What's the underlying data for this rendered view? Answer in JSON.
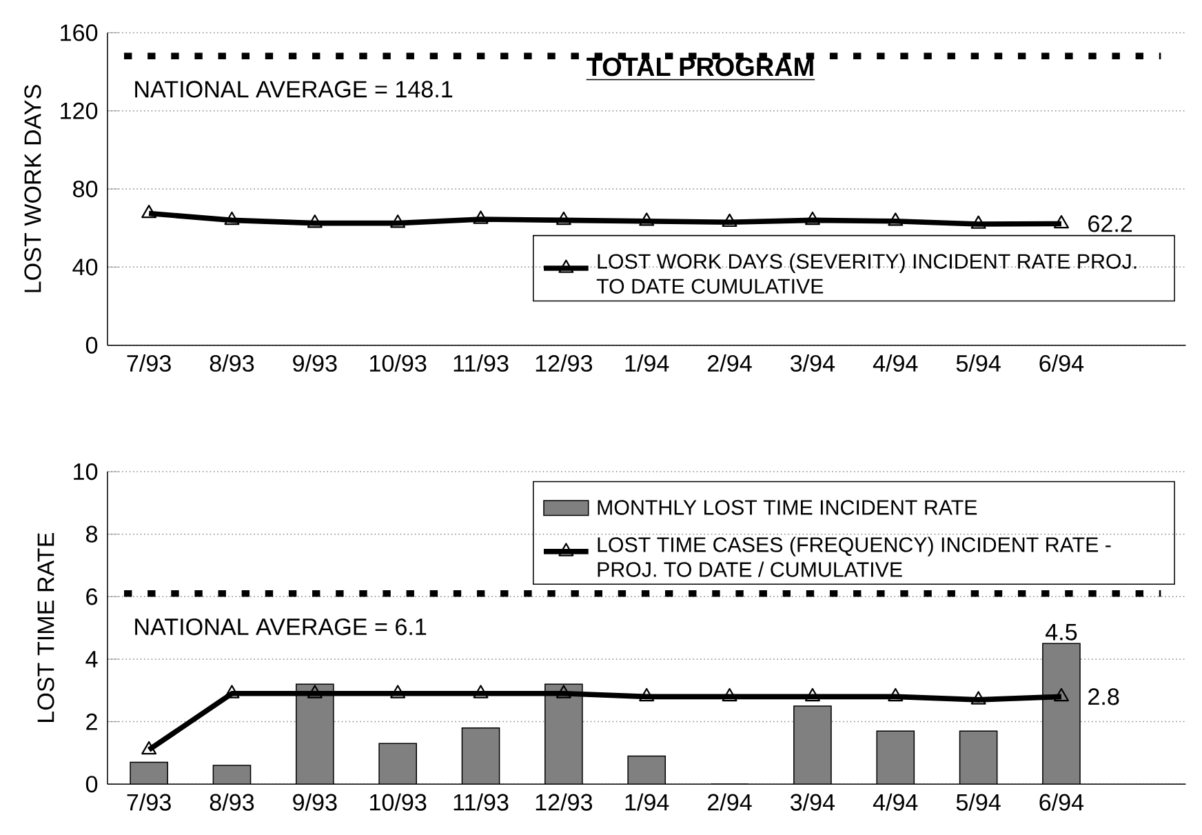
{
  "chart_data": [
    {
      "type": "line",
      "title": "TOTAL PROGRAM",
      "ylabel": "LOST WORK DAYS",
      "categories": [
        "7/93",
        "8/93",
        "9/93",
        "10/93",
        "11/93",
        "12/93",
        "1/94",
        "2/94",
        "3/94",
        "4/94",
        "5/94",
        "6/94"
      ],
      "series": [
        {
          "name": "LOST WORK DAYS (SEVERITY) INCIDENT RATE PROJ. TO DATE CUMULATIVE",
          "color": "#000000",
          "values": [
            67.5,
            64,
            62.5,
            62.5,
            64.5,
            64,
            63.5,
            63,
            64,
            63.5,
            62,
            62.2
          ],
          "value_labels": [
            null,
            null,
            null,
            null,
            null,
            null,
            null,
            null,
            null,
            null,
            null,
            "62.2"
          ]
        }
      ],
      "ylim": [
        0,
        160
      ],
      "yticks": [
        0,
        40,
        80,
        120,
        160
      ],
      "grid": "y",
      "legend": "bottom right",
      "marker": "triangle",
      "line_style": "solid",
      "ref_lines": [
        {
          "axis": "y",
          "value": 148.1,
          "label": "NATIONAL AVERAGE = 148.1",
          "line_style": "dotted",
          "color": "#000000"
        }
      ]
    },
    {
      "type": "bar",
      "ylabel": "LOST TIME RATE",
      "categories": [
        "7/93",
        "8/93",
        "9/93",
        "10/93",
        "11/93",
        "12/93",
        "1/94",
        "2/94",
        "3/94",
        "4/94",
        "5/94",
        "6/94"
      ],
      "series": [
        {
          "name": "MONTHLY LOST TIME INCIDENT RATE",
          "color": "#808080",
          "values": [
            0.7,
            0.6,
            3.2,
            1.3,
            1.8,
            3.2,
            0.9,
            0,
            2.5,
            1.7,
            1.7,
            4.5
          ],
          "value_labels": [
            null,
            null,
            null,
            null,
            null,
            null,
            null,
            null,
            null,
            null,
            null,
            "4.5"
          ]
        },
        {
          "name": "LOST TIME CASES (FREQUENCY) INCIDENT RATE - PROJ. TO DATE / CUMULATIVE",
          "type": "line",
          "color": "#000000",
          "values": [
            1.1,
            2.9,
            2.9,
            2.9,
            2.9,
            2.9,
            2.8,
            2.8,
            2.8,
            2.8,
            2.7,
            2.8
          ],
          "value_labels": [
            null,
            null,
            null,
            null,
            null,
            null,
            null,
            null,
            null,
            null,
            null,
            "2.8"
          ]
        }
      ],
      "ylim": [
        0,
        10
      ],
      "yticks": [
        0,
        2,
        4,
        6,
        8,
        10
      ],
      "grid": "y",
      "legend": "top right",
      "marker": "triangle",
      "line_style": "solid",
      "ref_lines": [
        {
          "axis": "y",
          "value": 6.1,
          "label": "NATIONAL AVERAGE = 6.1",
          "line_style": "dotted",
          "color": "#000000"
        }
      ]
    }
  ]
}
